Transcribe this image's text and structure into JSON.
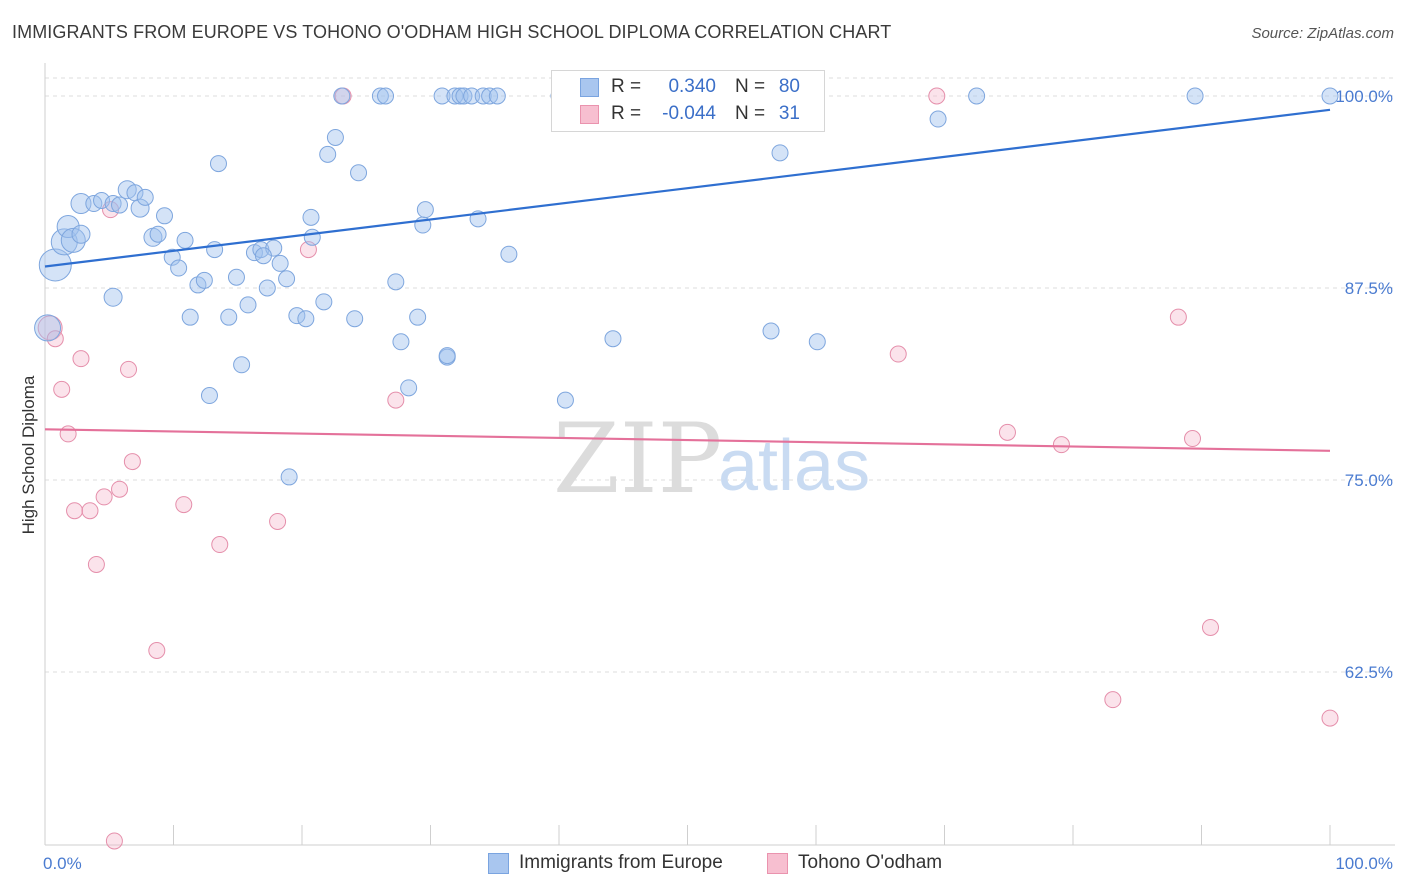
{
  "title": "IMMIGRANTS FROM EUROPE VS TOHONO O'ODHAM HIGH SCHOOL DIPLOMA CORRELATION CHART",
  "source": "Source: ZipAtlas.com",
  "watermark": {
    "zip": "ZIP",
    "atlas": "atlas"
  },
  "legend": {
    "rows": [
      {
        "r_label": "R =",
        "r_value": "0.340",
        "n_label": "N =",
        "n_value": "80",
        "color": "#a9c6ef",
        "border": "#7aa4e0",
        "text_color": "#3b6fc8"
      },
      {
        "r_label": "R =",
        "r_value": "-0.044",
        "n_label": "N =",
        "n_value": "31",
        "color": "#f7bfd0",
        "border": "#ea93ae",
        "text_color": "#3b6fc8"
      }
    ]
  },
  "bottom_legend": [
    {
      "label": "Immigrants from Europe",
      "color": "#a9c6ef",
      "border": "#7aa4e0"
    },
    {
      "label": "Tohono O'odham",
      "color": "#f7bfd0",
      "border": "#ea93ae"
    }
  ],
  "colors": {
    "blue_fill": "rgba(160,192,238,0.45)",
    "blue_stroke": "#7ea6de",
    "blue_line": "#2f6fd0",
    "pink_fill": "rgba(246,184,204,0.40)",
    "pink_stroke": "#e58fab",
    "pink_line": "#e4719a",
    "grid": "#dedede"
  },
  "chart_data": {
    "type": "scatter",
    "title": "IMMIGRANTS FROM EUROPE VS TOHONO O'ODHAM HIGH SCHOOL DIPLOMA CORRELATION CHART",
    "xlabel": "",
    "ylabel": "High School Diploma",
    "xlim": [
      0,
      100
    ],
    "ylim": [
      50,
      101
    ],
    "x_tick_labels": [
      "0.0%",
      "100.0%"
    ],
    "y_ticks": [
      62.5,
      75.0,
      87.5,
      100.0
    ],
    "y_tick_labels": [
      "62.5%",
      "75.0%",
      "87.5%",
      "100.0%"
    ],
    "grid": "horizontal dashed",
    "legend_position": "top-center",
    "series": [
      {
        "name": "Immigrants from Europe",
        "R": 0.34,
        "N": 80,
        "trend": {
          "x": [
            0,
            100
          ],
          "y": [
            88.9,
            99.1
          ]
        },
        "points": [
          [
            0.8,
            89.0,
            16
          ],
          [
            1.5,
            90.5,
            13
          ],
          [
            1.8,
            91.5,
            11
          ],
          [
            2.2,
            90.6,
            12
          ],
          [
            2.8,
            91.0,
            9
          ],
          [
            2.8,
            93.0,
            10
          ],
          [
            3.8,
            93.0,
            8
          ],
          [
            4.4,
            93.2,
            8
          ],
          [
            5.3,
            93.0,
            8
          ],
          [
            5.8,
            92.9,
            8
          ],
          [
            5.3,
            86.9,
            9
          ],
          [
            6.4,
            93.9,
            9
          ],
          [
            7.0,
            93.7,
            8
          ],
          [
            7.4,
            92.7,
            9
          ],
          [
            7.8,
            93.4,
            8
          ],
          [
            8.4,
            90.8,
            9
          ],
          [
            8.8,
            91.0,
            8
          ],
          [
            9.3,
            92.2,
            8
          ],
          [
            9.9,
            89.5,
            8
          ],
          [
            10.4,
            88.8,
            8
          ],
          [
            10.9,
            90.6,
            8
          ],
          [
            11.3,
            85.6,
            8
          ],
          [
            11.9,
            87.7,
            8
          ],
          [
            12.4,
            88.0,
            8
          ],
          [
            12.8,
            80.5,
            8
          ],
          [
            13.2,
            90.0,
            8
          ],
          [
            13.5,
            95.6,
            8
          ],
          [
            14.3,
            85.6,
            8
          ],
          [
            14.9,
            88.2,
            8
          ],
          [
            15.3,
            82.5,
            8
          ],
          [
            15.8,
            86.4,
            8
          ],
          [
            16.3,
            89.8,
            8
          ],
          [
            16.8,
            90.0,
            8
          ],
          [
            17.3,
            87.5,
            8
          ],
          [
            17.8,
            90.1,
            8
          ],
          [
            18.3,
            89.1,
            8
          ],
          [
            18.8,
            88.1,
            8
          ],
          [
            19.0,
            75.2,
            8
          ],
          [
            19.6,
            85.7,
            8
          ],
          [
            20.3,
            85.5,
            8
          ],
          [
            20.7,
            92.1,
            8
          ],
          [
            20.8,
            90.8,
            8
          ],
          [
            21.7,
            86.6,
            8
          ],
          [
            22.0,
            96.2,
            8
          ],
          [
            22.6,
            97.3,
            8
          ],
          [
            23.1,
            100.0,
            8
          ],
          [
            24.1,
            85.5,
            8
          ],
          [
            24.4,
            95.0,
            8
          ],
          [
            26.1,
            100.0,
            8
          ],
          [
            26.5,
            100.0,
            8
          ],
          [
            27.3,
            87.9,
            8
          ],
          [
            27.7,
            84.0,
            8
          ],
          [
            28.3,
            81.0,
            8
          ],
          [
            29.0,
            85.6,
            8
          ],
          [
            29.4,
            91.6,
            8
          ],
          [
            29.6,
            92.6,
            8
          ],
          [
            30.9,
            100.0,
            8
          ],
          [
            31.3,
            83.0,
            8
          ],
          [
            31.3,
            83.1,
            8
          ],
          [
            31.9,
            100.0,
            8
          ],
          [
            32.3,
            100.0,
            8
          ],
          [
            32.6,
            100.0,
            8
          ],
          [
            33.2,
            100.0,
            8
          ],
          [
            33.7,
            92.0,
            8
          ],
          [
            34.1,
            100.0,
            8
          ],
          [
            34.6,
            100.0,
            8
          ],
          [
            35.2,
            100.0,
            8
          ],
          [
            36.1,
            89.7,
            8
          ],
          [
            40.0,
            100.0,
            8
          ],
          [
            40.5,
            80.2,
            8
          ],
          [
            44.2,
            84.2,
            8
          ],
          [
            56.5,
            84.7,
            8
          ],
          [
            57.2,
            96.3,
            8
          ],
          [
            60.1,
            84.0,
            8
          ],
          [
            69.5,
            98.5,
            8
          ],
          [
            72.5,
            100.0,
            8
          ],
          [
            89.5,
            100.0,
            8
          ],
          [
            100.0,
            100.0,
            8
          ],
          [
            0.2,
            84.9,
            13
          ],
          [
            17.0,
            89.6,
            8
          ]
        ]
      },
      {
        "name": "Tohono O'odham",
        "R": -0.044,
        "N": 31,
        "trend": {
          "x": [
            0,
            100
          ],
          "y": [
            78.3,
            76.9
          ]
        },
        "points": [
          [
            0.4,
            84.9,
            12
          ],
          [
            0.8,
            84.2,
            8
          ],
          [
            1.3,
            80.9,
            8
          ],
          [
            1.8,
            78.0,
            8
          ],
          [
            2.3,
            73.0,
            8
          ],
          [
            2.8,
            82.9,
            8
          ],
          [
            3.5,
            73.0,
            8
          ],
          [
            4.0,
            69.5,
            8
          ],
          [
            4.6,
            73.9,
            8
          ],
          [
            5.1,
            92.6,
            8
          ],
          [
            5.4,
            51.5,
            8
          ],
          [
            5.8,
            74.4,
            8
          ],
          [
            6.5,
            82.2,
            8
          ],
          [
            6.8,
            76.2,
            8
          ],
          [
            8.7,
            63.9,
            8
          ],
          [
            10.8,
            73.4,
            8
          ],
          [
            13.6,
            70.8,
            8
          ],
          [
            18.1,
            72.3,
            8
          ],
          [
            20.5,
            90.0,
            8
          ],
          [
            23.2,
            100.0,
            8
          ],
          [
            27.3,
            80.2,
            8
          ],
          [
            47.4,
            100.0,
            8
          ],
          [
            69.4,
            100.0,
            8
          ],
          [
            66.4,
            83.2,
            8
          ],
          [
            74.9,
            78.1,
            8
          ],
          [
            79.1,
            77.3,
            8
          ],
          [
            83.1,
            60.7,
            8
          ],
          [
            88.2,
            85.6,
            8
          ],
          [
            89.3,
            77.7,
            8
          ],
          [
            90.7,
            65.4,
            8
          ],
          [
            100.0,
            59.5,
            8
          ]
        ]
      }
    ]
  }
}
